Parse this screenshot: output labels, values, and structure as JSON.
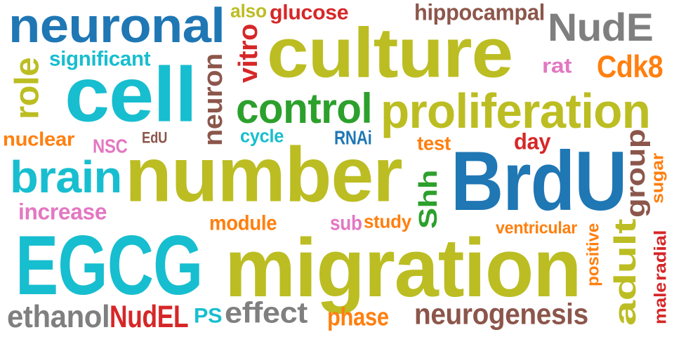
{
  "words": [
    {
      "id": "neuronal",
      "text": "neuronal",
      "color": "#1f77b4"
    },
    {
      "id": "also",
      "text": "also",
      "color": "#bcbd22"
    },
    {
      "id": "glucose",
      "text": "glucose",
      "color": "#d62728"
    },
    {
      "id": "hippocampal",
      "text": "hippocampal",
      "color": "#8c564b"
    },
    {
      "id": "nude",
      "text": "NudE",
      "color": "#7f7f7f"
    },
    {
      "id": "culture",
      "text": "culture",
      "color": "#bcbd22"
    },
    {
      "id": "significant",
      "text": "significant",
      "color": "#17becf"
    },
    {
      "id": "rat",
      "text": "rat",
      "color": "#e377c2"
    },
    {
      "id": "cdk8",
      "text": "Cdk8",
      "color": "#ff7f0e"
    },
    {
      "id": "role",
      "text": "role",
      "color": "#bcbd22"
    },
    {
      "id": "cell",
      "text": "cell",
      "color": "#17becf"
    },
    {
      "id": "neuron",
      "text": "neuron",
      "color": "#8c564b"
    },
    {
      "id": "vitro",
      "text": "vitro",
      "color": "#d62728"
    },
    {
      "id": "control",
      "text": "control",
      "color": "#2ca02c"
    },
    {
      "id": "proliferation",
      "text": "proliferation",
      "color": "#bcbd22"
    },
    {
      "id": "nuclear",
      "text": "nuclear",
      "color": "#ff7f0e"
    },
    {
      "id": "nsc",
      "text": "NSC",
      "color": "#e377c2"
    },
    {
      "id": "edu",
      "text": "EdU",
      "color": "#8c564b"
    },
    {
      "id": "cycle",
      "text": "cycle",
      "color": "#17becf"
    },
    {
      "id": "rnai",
      "text": "RNAi",
      "color": "#1f77b4"
    },
    {
      "id": "test",
      "text": "test",
      "color": "#ff7f0e"
    },
    {
      "id": "day",
      "text": "day",
      "color": "#d62728"
    },
    {
      "id": "brain",
      "text": "brain",
      "color": "#17becf"
    },
    {
      "id": "number",
      "text": "number",
      "color": "#bcbd22"
    },
    {
      "id": "shh",
      "text": "Shh",
      "color": "#2ca02c"
    },
    {
      "id": "brdu",
      "text": "BrdU",
      "color": "#1f77b4"
    },
    {
      "id": "group",
      "text": "group",
      "color": "#8c564b"
    },
    {
      "id": "sugar",
      "text": "sugar",
      "color": "#ff7f0e"
    },
    {
      "id": "increase",
      "text": "increase",
      "color": "#e377c2"
    },
    {
      "id": "module",
      "text": "module",
      "color": "#ff7f0e"
    },
    {
      "id": "sub",
      "text": "sub",
      "color": "#e377c2"
    },
    {
      "id": "study",
      "text": "study",
      "color": "#ff7f0e"
    },
    {
      "id": "ventricular",
      "text": "ventricular",
      "color": "#ff7f0e"
    },
    {
      "id": "egcg",
      "text": "EGCG",
      "color": "#17becf"
    },
    {
      "id": "migration",
      "text": "migration",
      "color": "#bcbd22"
    },
    {
      "id": "positive",
      "text": "positive",
      "color": "#ff7f0e"
    },
    {
      "id": "adult",
      "text": "adult",
      "color": "#bcbd22"
    },
    {
      "id": "male",
      "text": "male",
      "color": "#d62728"
    },
    {
      "id": "radial",
      "text": "radial",
      "color": "#d62728"
    },
    {
      "id": "ethanol",
      "text": "ethanol",
      "color": "#7f7f7f"
    },
    {
      "id": "nudel",
      "text": "NudEL",
      "color": "#d62728"
    },
    {
      "id": "ps",
      "text": "PS",
      "color": "#17becf"
    },
    {
      "id": "effect",
      "text": "effect",
      "color": "#7f7f7f"
    },
    {
      "id": "phase",
      "text": "phase",
      "color": "#ff7f0e"
    },
    {
      "id": "neurogenesis",
      "text": "neurogenesis",
      "color": "#8c564b"
    }
  ]
}
